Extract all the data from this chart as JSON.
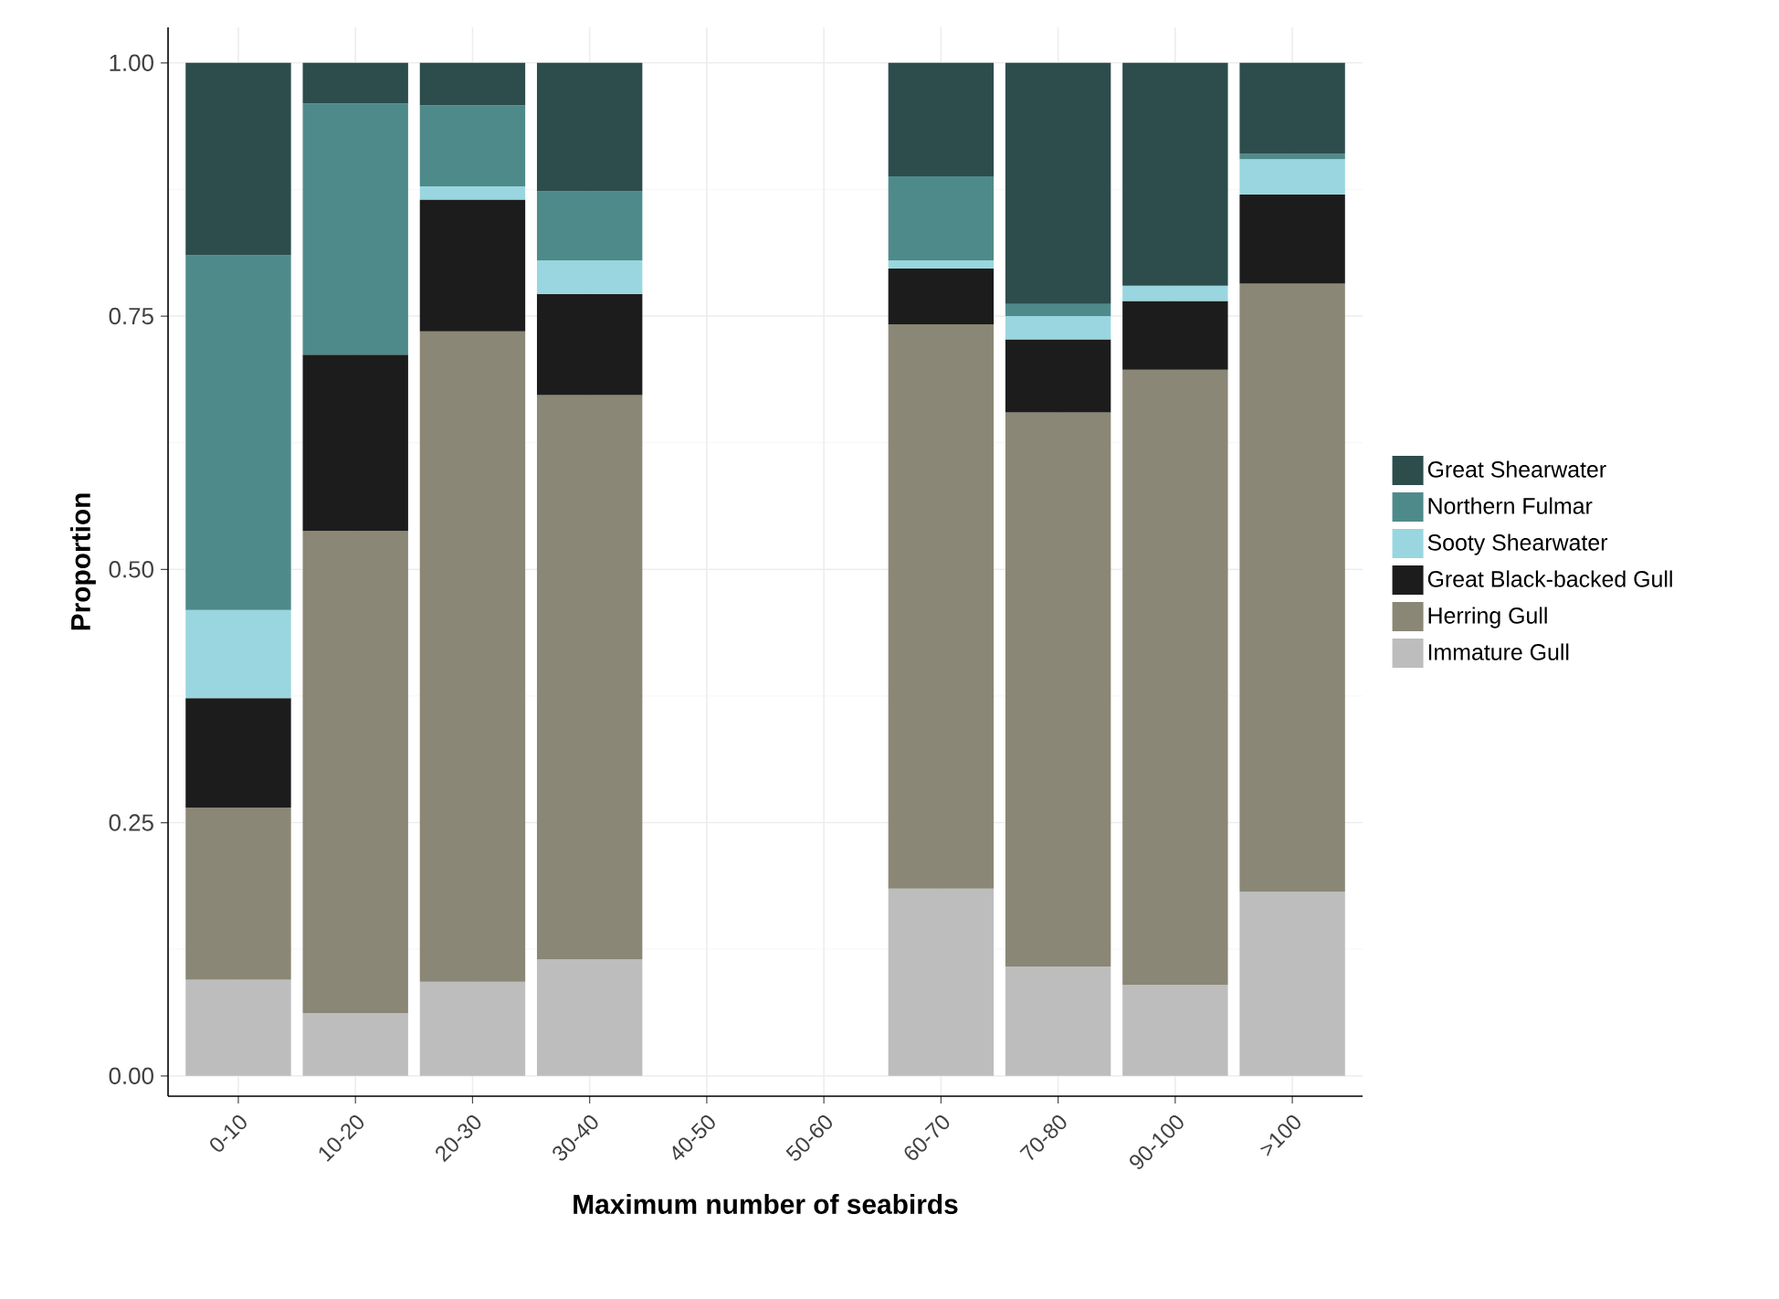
{
  "chart_data": {
    "type": "bar",
    "stacked": true,
    "xlabel": "Maximum number of seabirds",
    "ylabel": "Proportion",
    "categories": [
      "0-10",
      "10-20",
      "20-30",
      "30-40",
      "40-50",
      "50-60",
      "60-70",
      "70-80",
      "90-100",
      ">100"
    ],
    "series": [
      {
        "name": "Immature Gull",
        "color": "#bdbdbd",
        "values": [
          0.095,
          0.062,
          0.093,
          0.115,
          null,
          null,
          0.185,
          0.108,
          0.09,
          0.182
        ]
      },
      {
        "name": "Herring Gull",
        "color": "#8a8776",
        "values": [
          0.17,
          0.476,
          0.642,
          0.557,
          null,
          null,
          0.557,
          0.547,
          0.607,
          0.6
        ]
      },
      {
        "name": "Great Black-backed Gull",
        "color": "#1c1c1c",
        "values": [
          0.108,
          0.174,
          0.13,
          0.1,
          null,
          null,
          0.055,
          0.072,
          0.068,
          0.088
        ]
      },
      {
        "name": "Sooty Shearwater",
        "color": "#9ad6df",
        "values": [
          0.087,
          0,
          0.013,
          0.033,
          null,
          null,
          0.008,
          0.023,
          0.015,
          0.035
        ]
      },
      {
        "name": "Northern Fulmar",
        "color": "#4f8a8b",
        "values": [
          0.35,
          0.248,
          0.08,
          0.068,
          null,
          null,
          0.083,
          0.012,
          0,
          0.005
        ]
      },
      {
        "name": "Great Shearwater",
        "color": "#2d4c4c",
        "values": [
          0.19,
          0.04,
          0.042,
          0.127,
          null,
          null,
          0.112,
          0.238,
          0.22,
          0.09
        ]
      }
    ],
    "ylim": [
      -0.02,
      1.035
    ],
    "yticks": [
      {
        "value": 0,
        "label": "0.00"
      },
      {
        "value": 0.25,
        "label": "0.25"
      },
      {
        "value": 0.5,
        "label": "0.50"
      },
      {
        "value": 0.75,
        "label": "0.75"
      },
      {
        "value": 1,
        "label": "1.00"
      }
    ],
    "grid": true,
    "legend": "right"
  }
}
